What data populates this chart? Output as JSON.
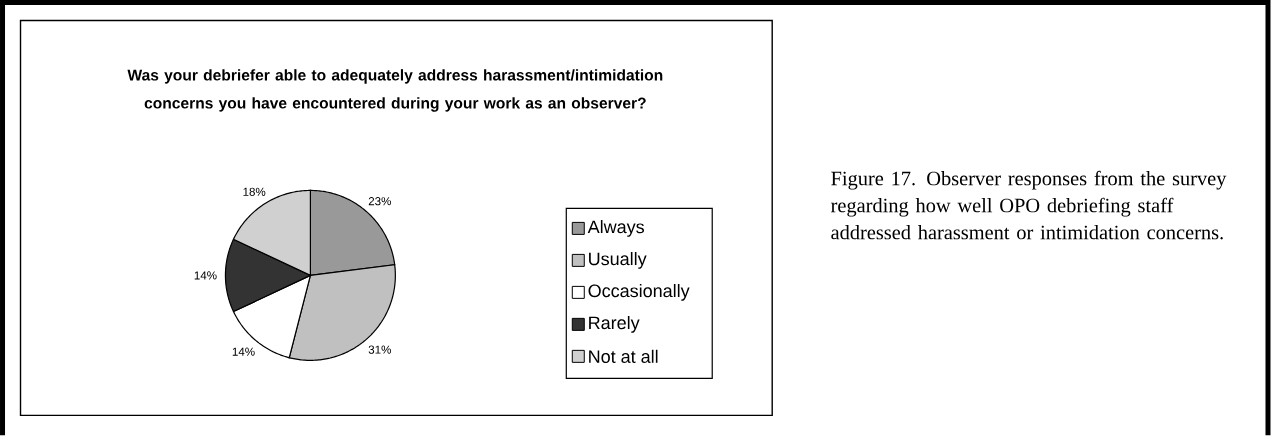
{
  "chart_data": {
    "type": "pie",
    "title": "Was your debriefer able to adequately address harassment/intimidation concerns you have encountered during your work as an observer?",
    "categories": [
      "Always",
      "Usually",
      "Occasionally",
      "Rarely",
      "Not at all"
    ],
    "values": [
      23,
      31,
      14,
      14,
      18
    ],
    "colors": [
      "#999999",
      "#c0c0c0",
      "#ffffff",
      "#333333",
      "#d0d0d0"
    ],
    "value_labels": [
      "23%",
      "31%",
      "14%",
      "14%",
      "18%"
    ],
    "legend": "right",
    "annotations": [
      "Figure 17.  Observer responses from the survey regarding how well OPO debriefing staff addressed harassment or intimidation concerns."
    ]
  }
}
